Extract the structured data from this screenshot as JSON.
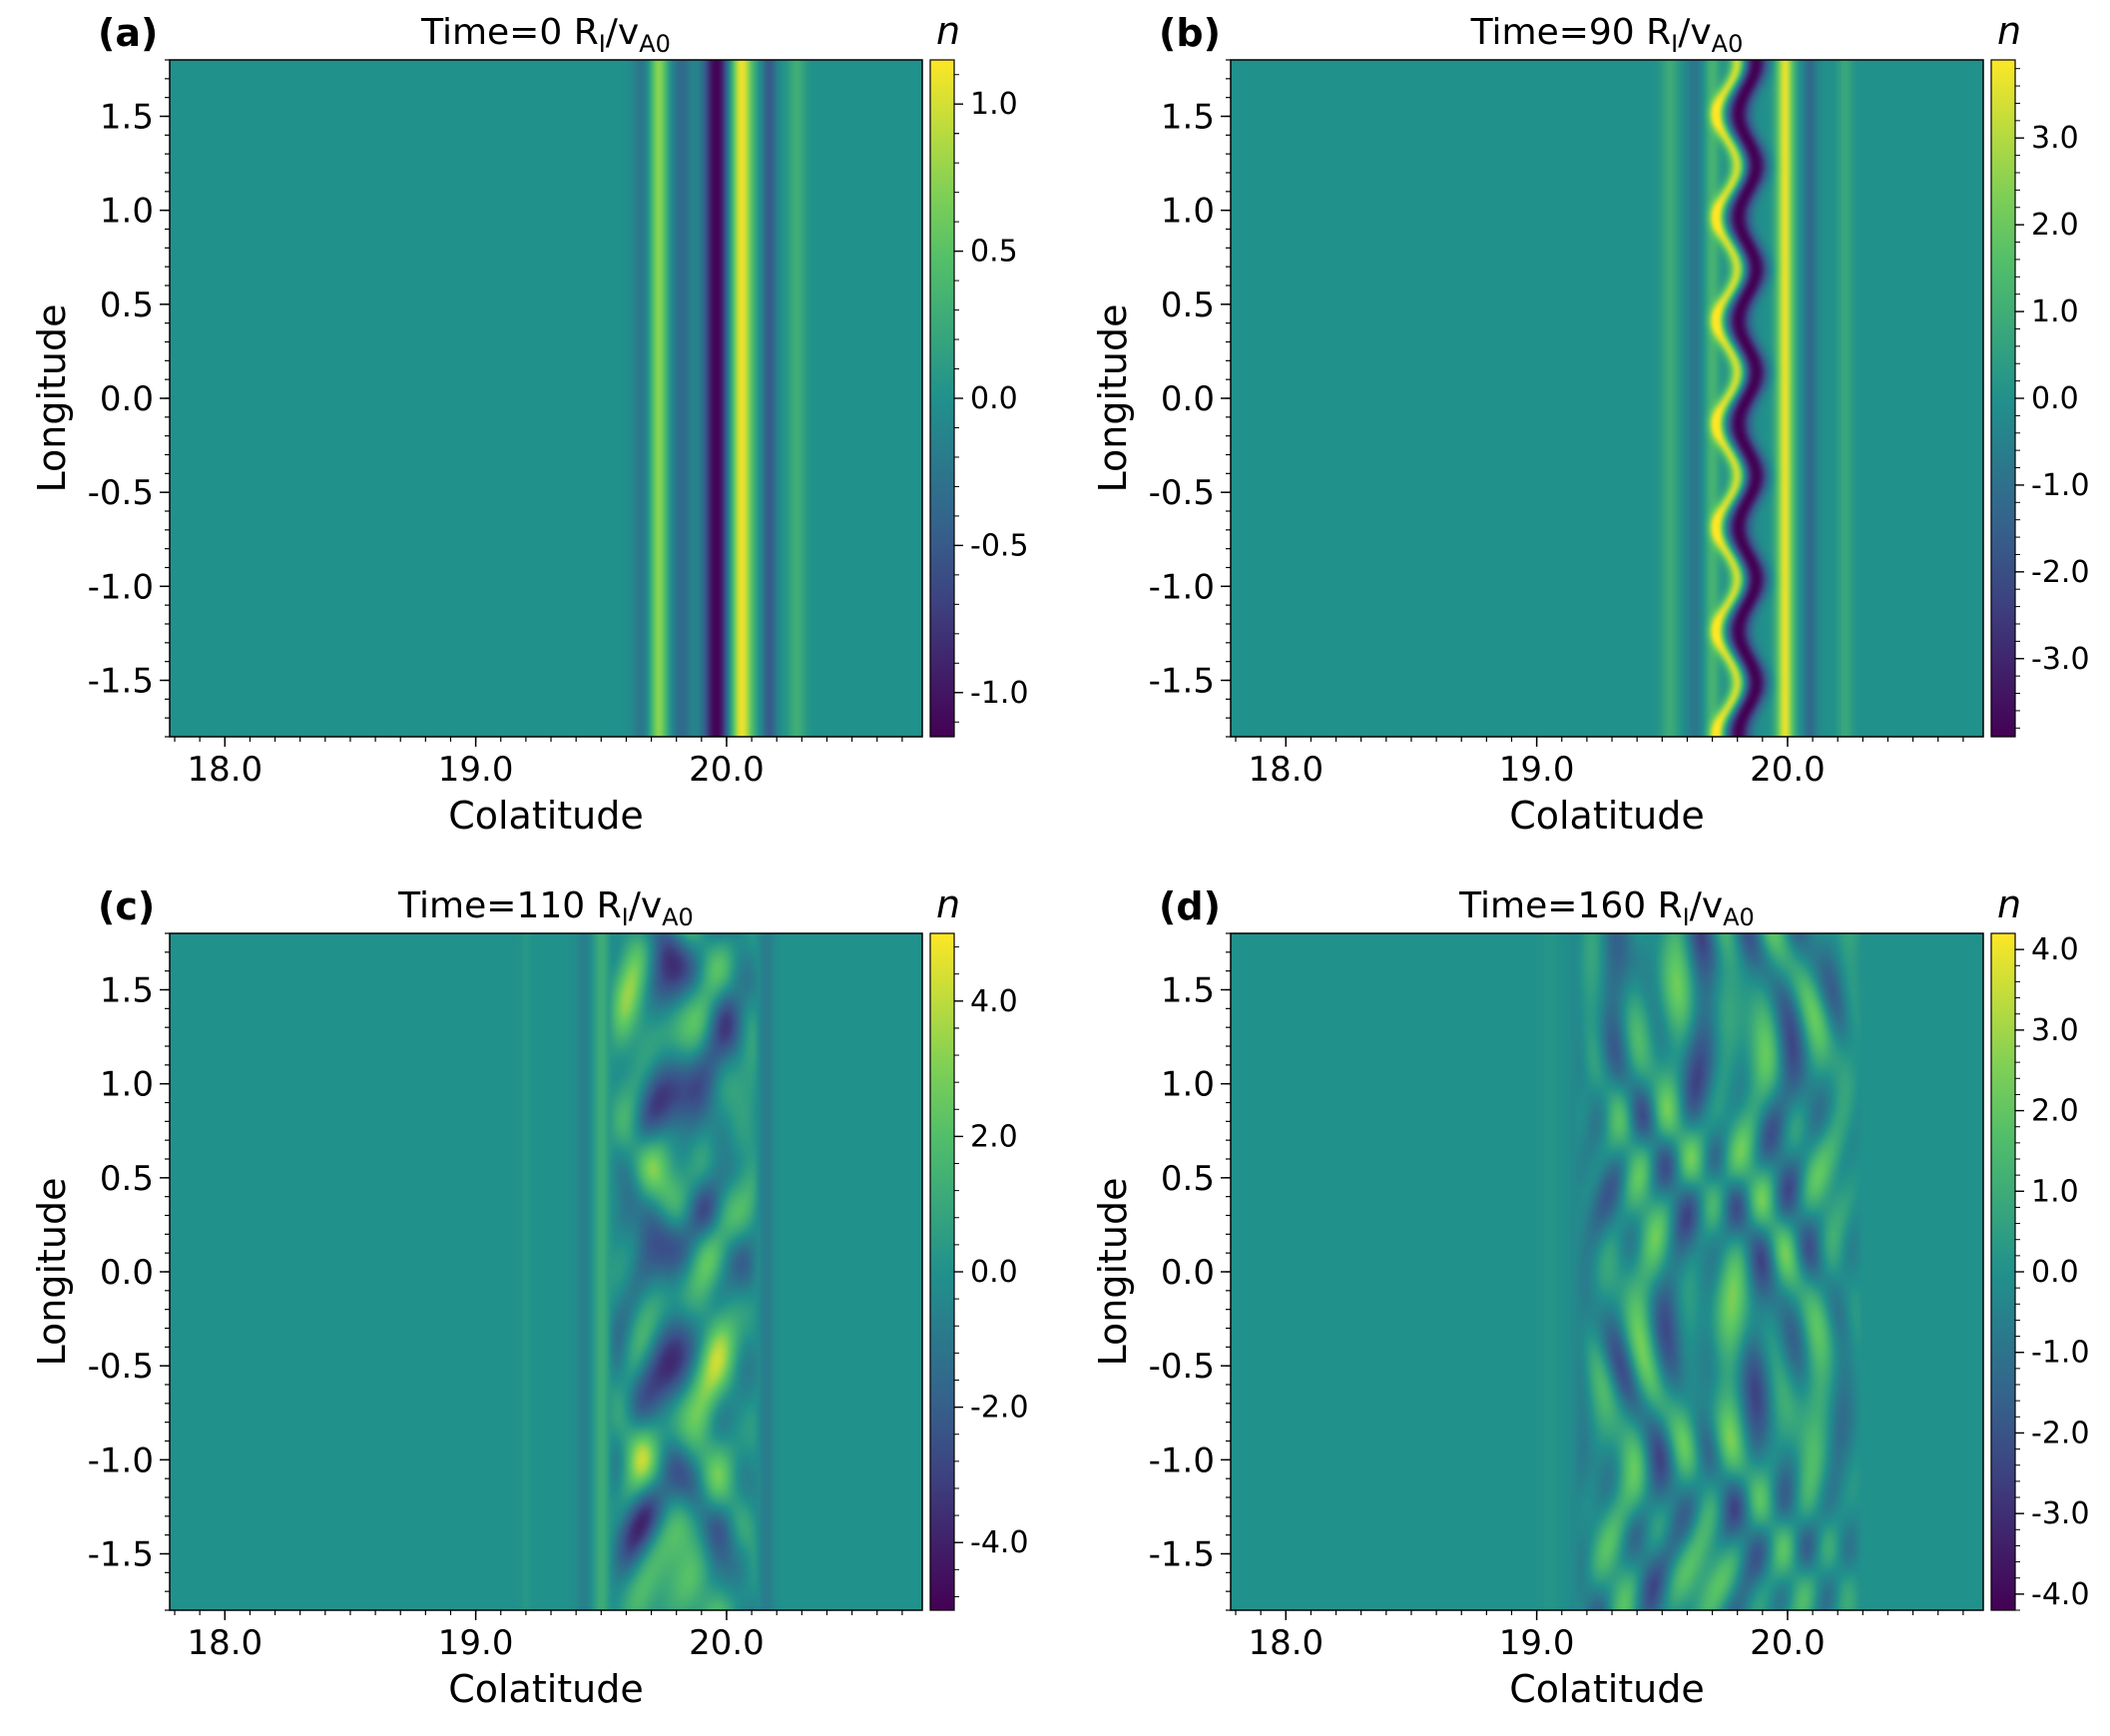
{
  "colormap": [
    "#440154",
    "#3b528b",
    "#21918c",
    "#5ec962",
    "#fde725"
  ],
  "chart_data": [
    {
      "type": "heatmap",
      "panel_label": "(a)",
      "title": "Time=0 R",
      "title_sub": "I",
      "title_mid": "/v",
      "title_sub2": "A0",
      "xlabel": "Colatitude",
      "ylabel": "Longitude",
      "colorbar_label": "n",
      "xlim": [
        17.78,
        20.78
      ],
      "ylim": [
        -1.8,
        1.8
      ],
      "xticks": [
        18.0,
        19.0,
        20.0
      ],
      "xtick_labels": [
        "18.0",
        "19.0",
        "20.0"
      ],
      "yticks": [
        1.5,
        1.0,
        0.5,
        0.0,
        -0.5,
        -1.0,
        -1.5
      ],
      "ytick_labels": [
        "1.5",
        "1.0",
        "0.5",
        "0.0",
        "-0.5",
        "-1.0",
        "-1.5"
      ],
      "clim": [
        -1.15,
        1.15
      ],
      "cticks": [
        1.0,
        0.5,
        0.0,
        -0.5,
        -1.0
      ],
      "ctick_labels": [
        "1.0",
        "0.5",
        "0.0",
        "-0.5",
        "-1.0"
      ],
      "bands": [
        {
          "x": 19.66,
          "w": 0.035,
          "v": -0.25
        },
        {
          "x": 19.73,
          "w": 0.035,
          "v": 0.75
        },
        {
          "x": 19.82,
          "w": 0.04,
          "v": -0.35
        },
        {
          "x": 19.96,
          "w": 0.05,
          "v": -1.15
        },
        {
          "x": 20.06,
          "w": 0.045,
          "v": 1.1
        },
        {
          "x": 20.17,
          "w": 0.03,
          "v": -0.5
        },
        {
          "x": 20.28,
          "w": 0.035,
          "v": 0.3
        }
      ],
      "turbulence": 0
    },
    {
      "type": "heatmap",
      "panel_label": "(b)",
      "title": "Time=90 R",
      "title_sub": "I",
      "title_mid": "/v",
      "title_sub2": "A0",
      "xlabel": "Colatitude",
      "ylabel": "Longitude",
      "colorbar_label": "n",
      "xlim": [
        17.78,
        20.78
      ],
      "ylim": [
        -1.8,
        1.8
      ],
      "xticks": [
        18.0,
        19.0,
        20.0
      ],
      "xtick_labels": [
        "18.0",
        "19.0",
        "20.0"
      ],
      "yticks": [
        1.5,
        1.0,
        0.5,
        0.0,
        -0.5,
        -1.0,
        -1.5
      ],
      "ytick_labels": [
        "1.5",
        "1.0",
        "0.5",
        "0.0",
        "-0.5",
        "-1.0",
        "-1.5"
      ],
      "clim": [
        -3.9,
        3.9
      ],
      "cticks": [
        3.0,
        2.0,
        1.0,
        0.0,
        -1.0,
        -2.0,
        -3.0
      ],
      "ctick_labels": [
        "3.0",
        "2.0",
        "1.0",
        "0.0",
        "-1.0",
        "-2.0",
        "-3.0"
      ],
      "bands": [
        {
          "x": 19.53,
          "w": 0.035,
          "v": 0.9
        },
        {
          "x": 19.63,
          "w": 0.035,
          "v": -0.8
        },
        {
          "x": 19.7,
          "w": 0.03,
          "v": 1.2
        },
        {
          "x": 19.76,
          "w": 0.03,
          "v": 3.5,
          "wave": 0.04
        },
        {
          "x": 19.84,
          "w": 0.045,
          "v": -3.9,
          "wave": 0.035
        },
        {
          "x": 19.99,
          "w": 0.035,
          "v": 3.6
        },
        {
          "x": 20.09,
          "w": 0.03,
          "v": -1.2
        },
        {
          "x": 20.23,
          "w": 0.03,
          "v": 0.8
        }
      ],
      "turbulence": 0
    },
    {
      "type": "heatmap",
      "panel_label": "(c)",
      "title": "Time=110 R",
      "title_sub": "I",
      "title_mid": "/v",
      "title_sub2": "A0",
      "xlabel": "Colatitude",
      "ylabel": "Longitude",
      "colorbar_label": "n",
      "xlim": [
        17.78,
        20.78
      ],
      "ylim": [
        -1.8,
        1.8
      ],
      "xticks": [
        18.0,
        19.0,
        20.0
      ],
      "xtick_labels": [
        "18.0",
        "19.0",
        "20.0"
      ],
      "yticks": [
        1.5,
        1.0,
        0.5,
        0.0,
        -0.5,
        -1.0,
        -1.5
      ],
      "ytick_labels": [
        "1.5",
        "1.0",
        "0.5",
        "0.0",
        "-0.5",
        "-1.0",
        "-1.5"
      ],
      "clim": [
        -5.0,
        5.0
      ],
      "cticks": [
        4.0,
        2.0,
        0.0,
        -2.0,
        -4.0
      ],
      "ctick_labels": [
        "4.0",
        "2.0",
        "0.0",
        "-2.0",
        "-4.0"
      ],
      "bands": [
        {
          "x": 19.2,
          "w": 0.02,
          "v": 0.3
        },
        {
          "x": 19.43,
          "w": 0.03,
          "v": -0.7
        },
        {
          "x": 19.5,
          "w": 0.03,
          "v": 1.2
        },
        {
          "x": 20.16,
          "w": 0.03,
          "v": -0.8
        }
      ],
      "turbulence": 1,
      "turb_range": [
        19.53,
        20.13
      ],
      "turb_amp": 3.5
    },
    {
      "type": "heatmap",
      "panel_label": "(d)",
      "title": "Time=160 R",
      "title_sub": "I",
      "title_mid": "/v",
      "title_sub2": "A0",
      "xlabel": "Colatitude",
      "ylabel": "Longitude",
      "colorbar_label": "n",
      "xlim": [
        17.78,
        20.78
      ],
      "ylim": [
        -1.8,
        1.8
      ],
      "xticks": [
        18.0,
        19.0,
        20.0
      ],
      "xtick_labels": [
        "18.0",
        "19.0",
        "20.0"
      ],
      "yticks": [
        1.5,
        1.0,
        0.5,
        0.0,
        -0.5,
        -1.0,
        -1.5
      ],
      "ytick_labels": [
        "1.5",
        "1.0",
        "0.5",
        "0.0",
        "-0.5",
        "-1.0",
        "-1.5"
      ],
      "clim": [
        -4.2,
        4.2
      ],
      "cticks": [
        4.0,
        3.0,
        2.0,
        1.0,
        0.0,
        -1.0,
        -2.0,
        -3.0,
        -4.0
      ],
      "ctick_labels": [
        "4.0",
        "3.0",
        "2.0",
        "1.0",
        "0.0",
        "-1.0",
        "-2.0",
        "-3.0",
        "-4.0"
      ],
      "bands": [
        {
          "x": 19.05,
          "w": 0.04,
          "v": 0.15
        },
        {
          "x": 19.17,
          "w": 0.05,
          "v": -0.3
        }
      ],
      "turbulence": 2,
      "turb_range": [
        19.15,
        20.3
      ],
      "turb_amp": 2.6
    }
  ]
}
